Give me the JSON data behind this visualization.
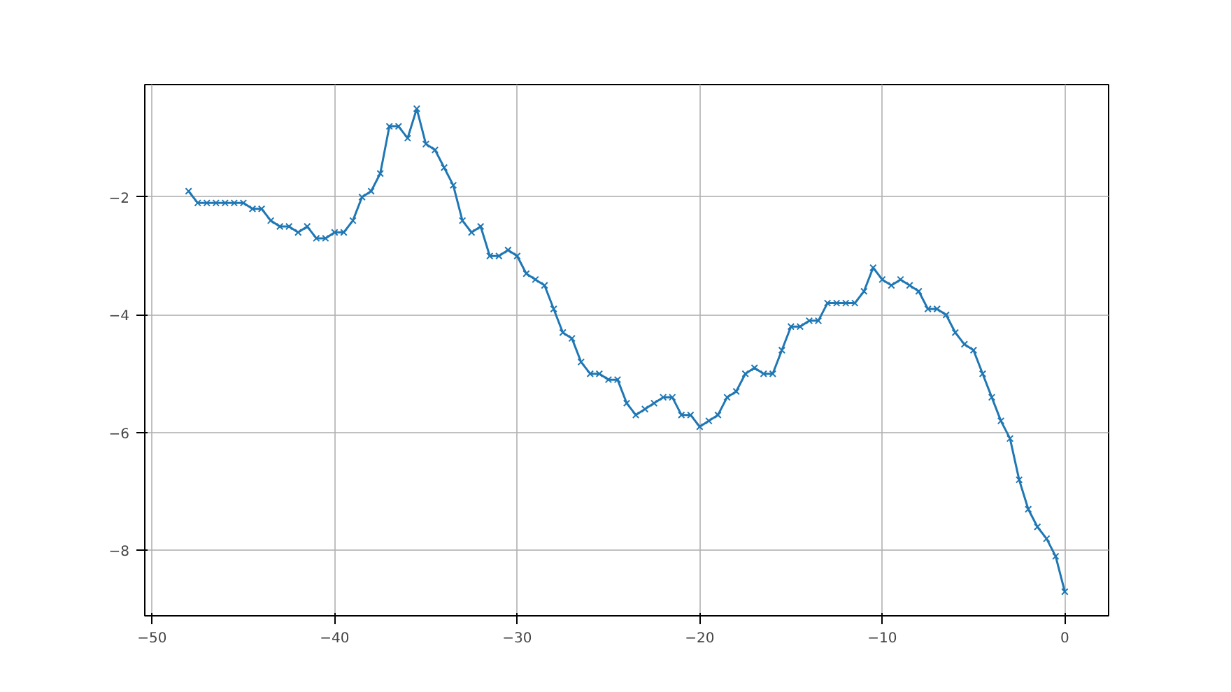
{
  "chart_data": {
    "type": "line",
    "marker": "cross",
    "grid": true,
    "color": "#1f77b4",
    "x": [
      -48,
      -47.5,
      -47,
      -46.5,
      -46,
      -45.5,
      -45,
      -44.5,
      -44,
      -43.5,
      -43,
      -42.5,
      -42,
      -41.5,
      -41,
      -40.5,
      -40,
      -39.5,
      -39,
      -38.5,
      -38,
      -37.5,
      -37,
      -36.5,
      -36,
      -35.5,
      -35,
      -34.5,
      -34,
      -33.5,
      -33,
      -32.5,
      -32,
      -31.5,
      -31,
      -30.5,
      -30,
      -29.5,
      -29,
      -28.5,
      -28,
      -27.5,
      -27,
      -26.5,
      -26,
      -25.5,
      -25,
      -24.5,
      -24,
      -23.5,
      -23,
      -22.5,
      -22,
      -21.5,
      -21,
      -20.5,
      -20,
      -19.5,
      -19,
      -18.5,
      -18,
      -17.5,
      -17,
      -16.5,
      -16,
      -15.5,
      -15,
      -14.5,
      -14,
      -13.5,
      -13,
      -12.5,
      -12,
      -11.5,
      -11,
      -10.5,
      -10,
      -9.5,
      -9,
      -8.5,
      -8,
      -7.5,
      -7,
      -6.5,
      -6,
      -5.5,
      -5,
      -4.5,
      -4,
      -3.5,
      -3,
      -2.5,
      -2,
      -1.5,
      -1,
      -0.5,
      0
    ],
    "values": [
      -1.9,
      -2.1,
      -2.1,
      -2.1,
      -2.1,
      -2.1,
      -2.1,
      -2.2,
      -2.2,
      -2.4,
      -2.5,
      -2.5,
      -2.6,
      -2.5,
      -2.7,
      -2.7,
      -2.6,
      -2.6,
      -2.4,
      -2.0,
      -1.9,
      -1.6,
      -0.8,
      -0.8,
      -1.0,
      -0.5,
      -1.1,
      -1.2,
      -1.5,
      -1.8,
      -2.4,
      -2.6,
      -2.5,
      -3.0,
      -3.0,
      -2.9,
      -3.0,
      -3.3,
      -3.4,
      -3.5,
      -3.9,
      -4.3,
      -4.4,
      -4.8,
      -5.0,
      -5.0,
      -5.1,
      -5.1,
      -5.5,
      -5.7,
      -5.6,
      -5.5,
      -5.4,
      -5.4,
      -5.7,
      -5.7,
      -5.9,
      -5.8,
      -5.7,
      -5.4,
      -5.3,
      -5.0,
      -4.9,
      -5.0,
      -5.0,
      -4.6,
      -4.2,
      -4.2,
      -4.1,
      -4.1,
      -3.8,
      -3.8,
      -3.8,
      -3.8,
      -3.6,
      -3.2,
      -3.4,
      -3.5,
      -3.4,
      -3.5,
      -3.6,
      -3.9,
      -3.9,
      -4.0,
      -4.3,
      -4.5,
      -4.6,
      -5.0,
      -5.4,
      -5.8,
      -6.1,
      -6.8,
      -7.3,
      -7.6,
      -7.8,
      -8.1,
      -8.7
    ],
    "xlim": [
      -50.4,
      2.4
    ],
    "ylim": [
      -9.11,
      -0.09
    ],
    "xticks": [
      -50,
      -40,
      -30,
      -20,
      -10,
      0
    ],
    "yticks": [
      -8,
      -6,
      -4,
      -2
    ]
  }
}
